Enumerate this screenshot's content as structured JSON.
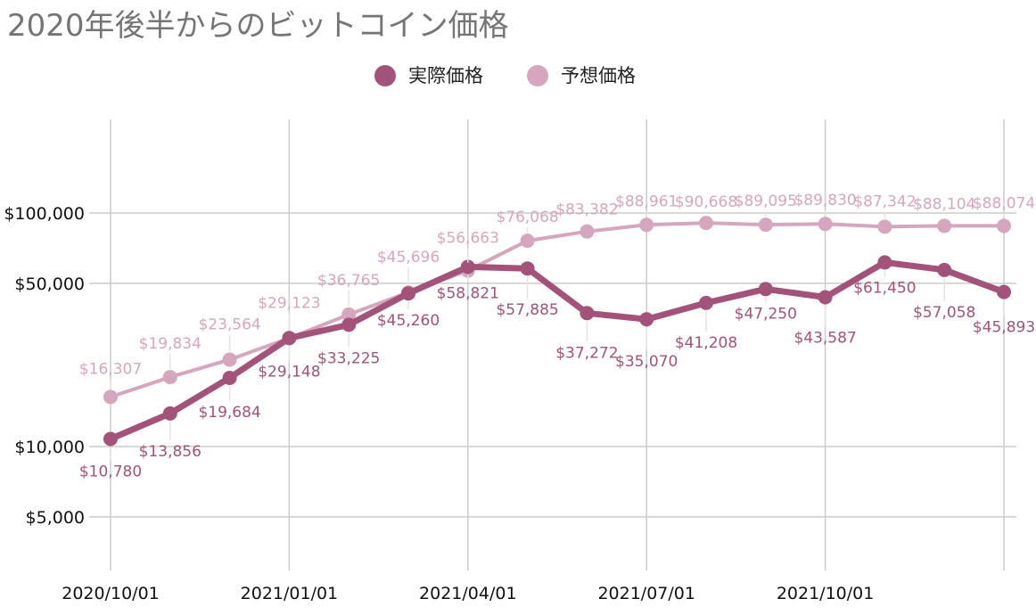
{
  "chart_data": {
    "type": "line",
    "title": "2020年後半からのビットコイン価格",
    "xlabel": "",
    "ylabel": "",
    "y_scale": "log",
    "ylim": [
      5000,
      170000
    ],
    "yticks": [
      {
        "value": 5000,
        "label": "$5,000"
      },
      {
        "value": 10000,
        "label": "$10,000"
      },
      {
        "value": 50000,
        "label": "$50,000"
      },
      {
        "value": 100000,
        "label": "$100,000"
      }
    ],
    "x": [
      "2020/10/01",
      "2020/11/01",
      "2020/12/01",
      "2021/01/01",
      "2021/02/01",
      "2021/03/01",
      "2021/04/01",
      "2021/05/01",
      "2021/06/01",
      "2021/07/01",
      "2021/08/01",
      "2021/09/01",
      "2021/10/01",
      "2021/11/01",
      "2021/12/01",
      "2022/01/01"
    ],
    "xtick_labels": [
      "2020/10/01",
      "2021/01/01",
      "2021/04/01",
      "2021/07/01",
      "2021/10/01"
    ],
    "legend_position": "top",
    "grid": true,
    "series": [
      {
        "name": "実際価格",
        "color": "#a35279",
        "values": [
          10780,
          13856,
          19684,
          29148,
          33225,
          45260,
          58821,
          57885,
          37272,
          35070,
          41208,
          47250,
          43587,
          61450,
          57058,
          45893
        ],
        "labels": [
          "$10,780",
          "$13,856",
          "$19,684",
          "$29,148",
          "$33,225",
          "$45,260",
          "$58,821",
          "$57,885",
          "$37,272",
          "$35,070",
          "$41,208",
          "$47,250",
          "$43,587",
          "$61,450",
          "$57,058",
          "$45,893"
        ]
      },
      {
        "name": "予想価格",
        "color": "#d5a6bd",
        "values": [
          16307,
          19834,
          23564,
          29123,
          36765,
          45696,
          56663,
          76068,
          83382,
          88961,
          90668,
          89095,
          89830,
          87342,
          88104,
          88074
        ],
        "labels": [
          "$16,307",
          "$19,834",
          "$23,564",
          "$29,123",
          "$36,765",
          "$45,696",
          "$56,663",
          "$76,068",
          "$83,382",
          "$88,961",
          "$90,668",
          "$89,095",
          "$89,830",
          "$87,342",
          "$88,104",
          "$88,074"
        ]
      }
    ]
  }
}
